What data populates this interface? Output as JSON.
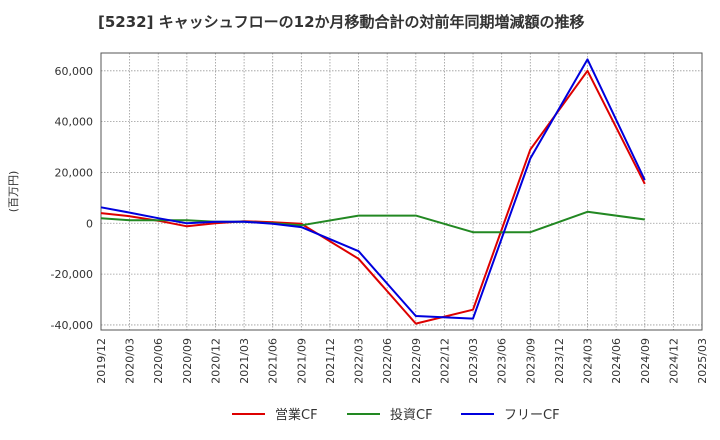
{
  "chart_data": {
    "type": "line",
    "title": "[5232]  キャッシュフローの12か月移動合計の対前年同期増減額の推移",
    "xlabel": "",
    "ylabel": "(百万円)",
    "ylim": [
      -42000,
      67000
    ],
    "yticks": [
      60000,
      40000,
      20000,
      0,
      -20000,
      -40000
    ],
    "ytick_labels": [
      "60,000",
      "40,000",
      "20,000",
      "0",
      "-20,000",
      "-40,000"
    ],
    "x": [
      "2019/12",
      "2020/03",
      "2020/06",
      "2020/09",
      "2020/12",
      "2021/03",
      "2021/06",
      "2021/09",
      "2021/12",
      "2022/03",
      "2022/06",
      "2022/09",
      "2022/12",
      "2023/03",
      "2023/06",
      "2023/09",
      "2023/12",
      "2024/03",
      "2024/06",
      "2024/09",
      "2024/12",
      "2025/03"
    ],
    "grid": true,
    "legend_position": "bottom",
    "series": [
      {
        "name": "営業CF",
        "color": "#dd0000",
        "values": [
          4000,
          2800,
          1000,
          -1200,
          0,
          800,
          400,
          -200,
          null,
          -14000,
          null,
          -39500,
          null,
          -34000,
          null,
          29000,
          null,
          60000,
          null,
          15500,
          null,
          null
        ]
      },
      {
        "name": "投資CF",
        "color": "#228822",
        "values": [
          2000,
          1200,
          1200,
          1200,
          600,
          600,
          0,
          -800,
          null,
          3000,
          null,
          3000,
          null,
          -3500,
          null,
          -3500,
          null,
          4500,
          null,
          1500,
          null,
          null
        ]
      },
      {
        "name": "フリーCF",
        "color": "#0000dd",
        "values": [
          6300,
          4200,
          2000,
          0,
          600,
          600,
          -200,
          -1500,
          null,
          -11000,
          null,
          -36500,
          null,
          -37500,
          null,
          25500,
          null,
          64500,
          null,
          17000,
          null,
          null
        ]
      }
    ]
  }
}
